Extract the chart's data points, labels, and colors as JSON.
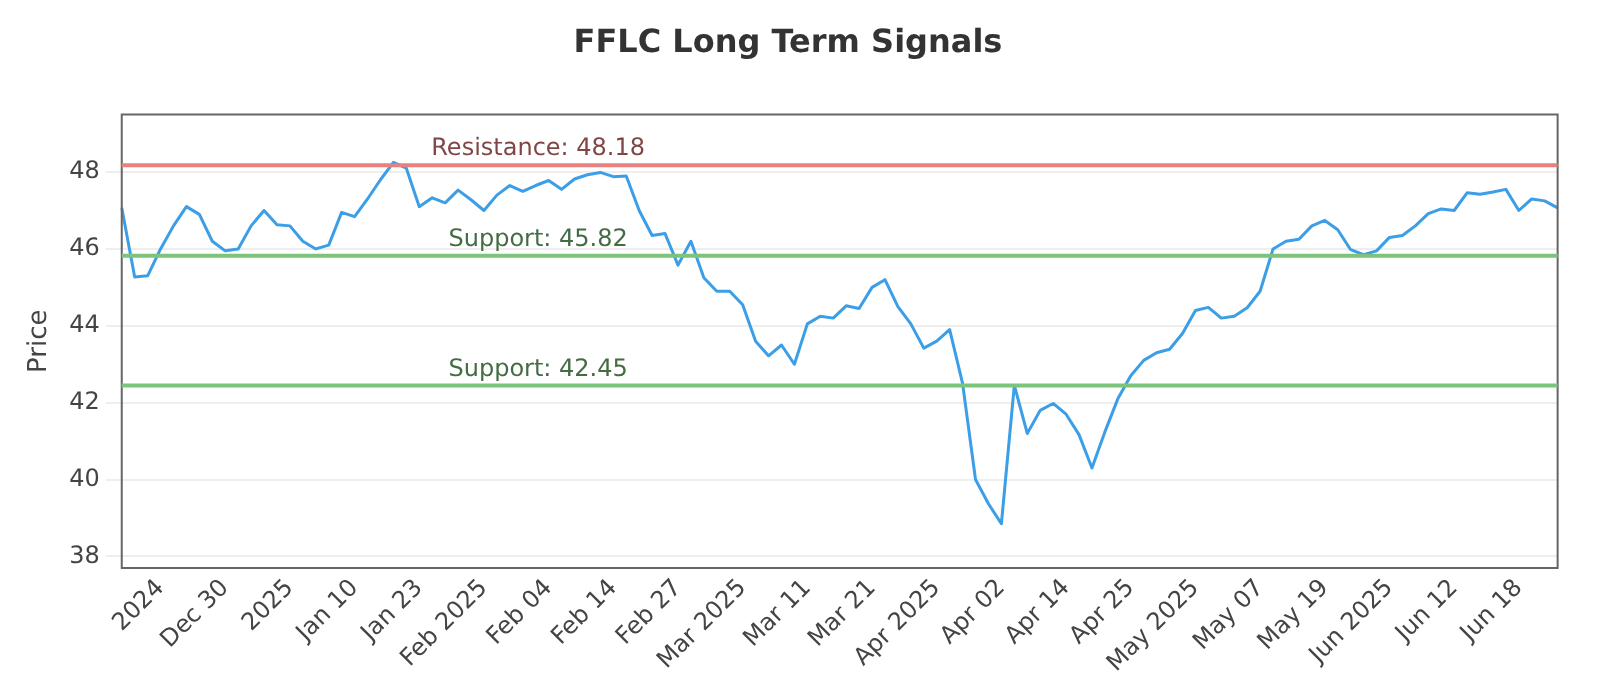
{
  "chart_data": {
    "type": "line",
    "title": "FFLC Long Term Signals",
    "ylabel": "Price",
    "categories": [
      null,
      null,
      null,
      "2024",
      null,
      null,
      null,
      null,
      "Dec 30",
      null,
      null,
      null,
      null,
      "2025",
      null,
      null,
      null,
      null,
      "Jan 10",
      null,
      null,
      null,
      null,
      "Jan 23",
      null,
      null,
      null,
      null,
      "Feb 2025",
      null,
      null,
      null,
      null,
      "Feb 04",
      null,
      null,
      null,
      null,
      "Feb 14",
      null,
      null,
      null,
      null,
      "Feb 27",
      null,
      null,
      null,
      null,
      "Mar 2025",
      null,
      null,
      null,
      null,
      "Mar 11",
      null,
      null,
      null,
      null,
      "Mar 21",
      null,
      null,
      null,
      null,
      "Apr 2025",
      null,
      null,
      null,
      null,
      "Apr 02",
      null,
      null,
      null,
      null,
      "Apr 14",
      null,
      null,
      null,
      null,
      "Apr 25",
      null,
      null,
      null,
      null,
      "May 2025",
      null,
      null,
      null,
      null,
      "May 07",
      null,
      null,
      null,
      null,
      "May 19",
      null,
      null,
      null,
      null,
      "Jun 2025",
      null,
      null,
      null,
      null,
      "Jun 12",
      null,
      null,
      null,
      null,
      "Jun 18",
      null,
      null,
      null
    ],
    "series": [
      {
        "color": "#3b9ee6",
        "values": [
          47.07,
          45.27,
          45.3,
          46.0,
          46.6,
          47.1,
          46.9,
          46.2,
          45.95,
          46.0,
          46.6,
          47.0,
          46.63,
          46.6,
          46.2,
          46.0,
          46.1,
          46.95,
          46.84,
          47.3,
          47.8,
          48.25,
          48.1,
          47.1,
          47.33,
          47.2,
          47.53,
          47.28,
          47.0,
          47.4,
          47.65,
          47.5,
          47.65,
          47.78,
          47.55,
          47.82,
          47.93,
          47.99,
          47.88,
          47.9,
          47.0,
          46.35,
          46.4,
          45.58,
          46.2,
          45.25,
          44.9,
          44.9,
          44.55,
          43.6,
          43.22,
          43.5,
          43.0,
          44.05,
          44.25,
          44.2,
          44.52,
          44.45,
          45.0,
          45.2,
          44.5,
          44.05,
          43.42,
          43.6,
          43.9,
          42.5,
          40.0,
          39.37,
          38.85,
          42.45,
          41.2,
          41.8,
          41.98,
          41.7,
          41.17,
          40.3,
          41.24,
          42.1,
          42.7,
          43.1,
          43.3,
          43.39,
          43.8,
          44.4,
          44.48,
          44.2,
          44.25,
          44.47,
          44.9,
          46.0,
          46.2,
          46.25,
          46.6,
          46.74,
          46.5,
          45.98,
          45.85,
          45.95,
          46.3,
          46.35,
          46.6,
          46.92,
          47.04,
          47.0,
          47.46,
          47.42,
          47.48,
          47.55,
          47.0,
          47.3,
          47.25,
          47.07
        ]
      }
    ],
    "ylim": [
      37.7,
      49.5
    ],
    "yticks": [
      38,
      40,
      42,
      44,
      46,
      48
    ],
    "grid": "y",
    "legend": false,
    "marker": "none",
    "line_style": "solid",
    "ref_lines": [
      {
        "axis": "y",
        "value": 48.18,
        "label": "Resistance: 48.18",
        "color": "#e88080"
      },
      {
        "axis": "y",
        "value": 45.82,
        "label": "Support: 45.82",
        "color": "#7cc47c"
      },
      {
        "axis": "y",
        "value": 42.45,
        "label": "Support: 42.45",
        "color": "#7cc47c"
      }
    ]
  }
}
